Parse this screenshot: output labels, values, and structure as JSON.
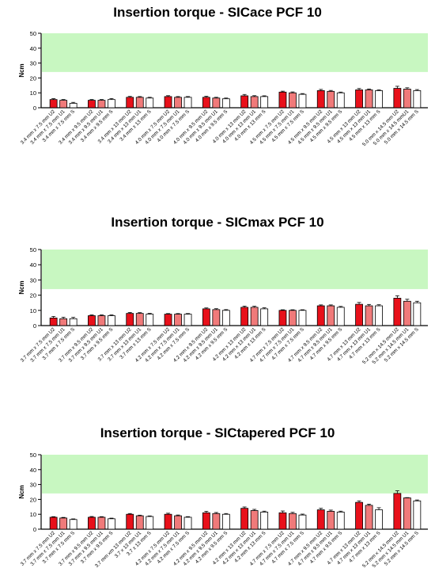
{
  "chart_data": [
    {
      "type": "bar",
      "title": "Insertion torque - SICace PCF 10",
      "xlabel": "",
      "ylabel": "Ncm",
      "ylim": [
        0,
        50
      ],
      "yticks": [
        0,
        10,
        20,
        30,
        40,
        50
      ],
      "green_band": [
        24,
        50
      ],
      "categories": [
        "3.4 mm x 7.5 mm U2",
        "3.4 mm x 7.5 mm U1",
        "3.4 mm x 7.5 mm S",
        "3.4 mm x 9.5 mm U2",
        "3.4 mm x 9.5 mm U1",
        "3.4 mm x 9.5 mm S",
        "3.4 mm x 13 mm U2",
        "3.4 mm x 13 mm U1",
        "3.4 mm x 13 mm S",
        "4.0 mm x 7.5 mm U2",
        "4.0 mm x 7.5 mm U1",
        "4.0 mm x 7.5 mm S",
        "4.0 mm x 9.5 mm U2",
        "4.0 mm x 9.5 mm U1",
        "4.0 mm x 9.5 mm S",
        "4.0 mm x 13 mm U2",
        "4.0 mm x 13 mm U1",
        "4.0 mm x 13 mm S",
        "4.5 mm x 7.5 mm U2",
        "4.5 mm x 7.5 mm U1",
        "4.5 mm x 7.5 mm S",
        "4.5 mm x 9.5 mm U2",
        "4.5 mm x 9.5 mm U1",
        "4.5 mm x 9.5 mm S",
        "4.5 mm x 13 mm U2",
        "4.5 mm x 13 mm U1",
        "4.5 mm x 13 mm S",
        "5.0 mm x 14.5 mm U2",
        "5.0 mm x 14.5 mmU1",
        "5.0 mm x 14.5 mm S"
      ],
      "values": [
        5.5,
        5,
        3,
        5,
        5,
        5.5,
        7,
        7,
        6.5,
        7.5,
        7,
        7,
        7,
        6.5,
        6,
        8,
        7.5,
        7.5,
        10.5,
        10,
        9,
        11.5,
        11,
        10,
        12,
        12,
        11.5,
        13,
        12.5,
        11.5
      ],
      "errors": [
        0.6,
        0.5,
        0.6,
        0.5,
        0.5,
        0.7,
        0.6,
        0.5,
        0.5,
        0.6,
        0.5,
        0.5,
        0.7,
        0.5,
        0.5,
        0.9,
        0.6,
        0.5,
        0.6,
        0.6,
        0.5,
        0.8,
        0.6,
        0.5,
        0.9,
        0.6,
        0.5,
        1.4,
        0.9,
        0.7
      ]
    },
    {
      "type": "bar",
      "title": "Insertion torque - SICmax PCF 10",
      "xlabel": "",
      "ylabel": "Ncm",
      "ylim": [
        0,
        50
      ],
      "yticks": [
        0,
        10,
        20,
        30,
        40,
        50
      ],
      "green_band": [
        24,
        50
      ],
      "categories": [
        "3.7 mm x 7.5 mm U2",
        "3.7 mm x 7.5 mm U1",
        "3.7 mm x 7.5 mm S",
        "3.7 mm x 9.5 mm U2",
        "3.7 mm x 9.5 mm U1",
        "3.7 mm x 9.5 mm S",
        "3.7 mm x 13 mm U2",
        "3.7 mm x 13 mm U1",
        "3.7 mm x 13 mm S",
        "4.2 mm x 7.5 mm U2",
        "4.2 mm x 7.5 mm U1",
        "4.2 mm x 7.5 mm S",
        "4.2 mm x 9.5 mm U2",
        "4.2 mm x 9.5 mm U1",
        "4.2 mm x 9.5 mm S",
        "4.2 mm x 13 mm U2",
        "4.2 mm x 13 mm U1",
        "4.2 mm x 13 mm S",
        "4.7 mm x 7.5 mm U2",
        "4.7 mm x 7.5 mm U1",
        "4.7 mm x 7.5 mm S",
        "4.7 mm x 9.5 mm U2",
        "4.7 mm x 9.5 mm U1",
        "4.7 mm x 9.5 mm S",
        "4.7 mm x 13 mm U2",
        "4.7 mm x 13 mm U1",
        "4.7 mm x 13 mm S",
        "5.2 mm x 14.5 mm U2",
        "5.2 mm x 14.5 mm U1",
        "5.2 mm x 14.5 mm S"
      ],
      "values": [
        5,
        4.5,
        4.5,
        6.5,
        6.5,
        6.5,
        8,
        8,
        7.5,
        7.5,
        7.5,
        7.5,
        11,
        10.5,
        10,
        12,
        12,
        11,
        10,
        10,
        10,
        13,
        13,
        12,
        14,
        13,
        13,
        18,
        16,
        15
      ],
      "errors": [
        1.0,
        1.0,
        0.9,
        0.5,
        0.5,
        0.5,
        0.6,
        0.5,
        0.5,
        0.4,
        0.4,
        0.4,
        0.6,
        0.6,
        0.5,
        0.8,
        0.7,
        0.7,
        0.4,
        0.4,
        0.4,
        0.6,
        0.6,
        0.6,
        1.2,
        0.9,
        0.7,
        1.6,
        1.3,
        1.0
      ]
    },
    {
      "type": "bar",
      "title": "Insertion torque - SICtapered PCF 10",
      "xlabel": "",
      "ylabel": "Ncm",
      "ylim": [
        0,
        50
      ],
      "yticks": [
        0,
        10,
        20,
        30,
        40,
        50
      ],
      "green_band": [
        24,
        50
      ],
      "categories": [
        "3.7 mm x 7.5 mm U2",
        "3.7 mm x 7.5 mm U1",
        "3.7 mm x 7.5 mm S",
        "3.7 mm x 9.5 mm U2",
        "3.7 mm x 9.5 mm U1",
        "3.7 mm x 9.5 mm S",
        "3.7 mm xm 13 mm U2",
        "3.7 x 13 mm U1",
        "3.7 x 13 mm S",
        "4.2 mm x 7.5 mm U2",
        "4.2 mm x 7.5 mm U1",
        "4.2 mm x 7.5 mm S",
        "4.2 mm x 9.5 mm U2",
        "4.2 mm x 9.5 mm U1",
        "4.2 mm x 9.5 mm S",
        "4.2 mm x 13 mm U2",
        "4.2 mm x 13 mm U1",
        "4.2 mm x 13 mm S",
        "4.7 mm x 7.5 mm U2",
        "4.7 mm x 7.5 mm U1",
        "4.7 mm x 7.5 mm S",
        "4.7 mm x 9.5 mm U2",
        "4.7 mm x 9.5 mm U1",
        "4.7 mm x 9.5 mm S",
        "4.7 mm x 13 mm U2",
        "4.7 mm x 13 mm U1",
        "4.7 mm x 13 mm S",
        "5.2 mm x 14.5 mm U2",
        "5.2 mm x 14.5 mm U1",
        "5.2 mm x 14.5 mm S"
      ],
      "values": [
        8,
        7.5,
        6.5,
        8,
        8,
        7,
        10,
        9,
        8.5,
        10,
        9,
        8,
        11,
        10.5,
        10,
        14,
        12.5,
        11.5,
        11,
        10.5,
        9.5,
        13,
        12,
        11.5,
        18,
        16,
        13,
        24,
        21,
        19
      ],
      "errors": [
        0.4,
        0.4,
        0.4,
        0.5,
        0.4,
        0.4,
        0.5,
        0.4,
        0.4,
        0.7,
        0.5,
        0.4,
        1.0,
        0.7,
        0.5,
        0.9,
        0.8,
        0.6,
        1.2,
        0.8,
        0.6,
        1.0,
        0.8,
        0.6,
        1.0,
        0.8,
        1.4,
        1.8,
        0.2,
        0.6
      ]
    }
  ],
  "colors": {
    "U2": "#e8101a",
    "U1": "#f07a7a",
    "S": "#ffffff",
    "band": "#c8f7c1",
    "axis": "#000000"
  }
}
